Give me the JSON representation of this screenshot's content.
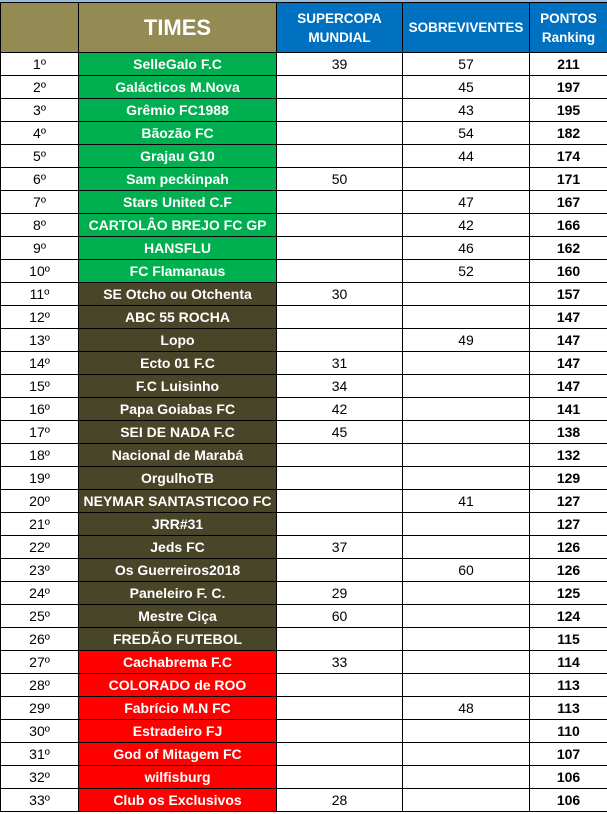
{
  "header": {
    "times": "TIMES",
    "supercopa": "SUPERCOPA MUNDIAL",
    "sobreviventes": "SOBREVIVENTES",
    "pontos": "PONTOS Ranking"
  },
  "colors": {
    "header_khaki": "#948a54",
    "header_blue": "#0070c0",
    "top_zone": "#00b050",
    "middle_zone": "#494529",
    "bottom_zone": "#ff0000"
  },
  "rows": [
    {
      "pos": "1º",
      "team": "SelleGalo F.C",
      "supercopa": "39",
      "sobreviventes": "57",
      "pontos": "211",
      "zone": "g"
    },
    {
      "pos": "2º",
      "team": "Galácticos M.Nova",
      "supercopa": "",
      "sobreviventes": "45",
      "pontos": "197",
      "zone": "g"
    },
    {
      "pos": "3º",
      "team": "Grêmio FC1988",
      "supercopa": "",
      "sobreviventes": "43",
      "pontos": "195",
      "zone": "g"
    },
    {
      "pos": "4º",
      "team": "Bãozão FC",
      "supercopa": "",
      "sobreviventes": "54",
      "pontos": "182",
      "zone": "g"
    },
    {
      "pos": "5º",
      "team": "Grajau G10",
      "supercopa": "",
      "sobreviventes": "44",
      "pontos": "174",
      "zone": "g"
    },
    {
      "pos": "6º",
      "team": "Sam peckinpah",
      "supercopa": "50",
      "sobreviventes": "",
      "pontos": "171",
      "zone": "g"
    },
    {
      "pos": "7º",
      "team": "Stars United C.F",
      "supercopa": "",
      "sobreviventes": "47",
      "pontos": "167",
      "zone": "g"
    },
    {
      "pos": "8º",
      "team": "CARTOLÂO BREJO FC GP",
      "supercopa": "",
      "sobreviventes": "42",
      "pontos": "166",
      "zone": "g"
    },
    {
      "pos": "9º",
      "team": "HANSFLU",
      "supercopa": "",
      "sobreviventes": "46",
      "pontos": "162",
      "zone": "g"
    },
    {
      "pos": "10º",
      "team": "FC Flamanaus",
      "supercopa": "",
      "sobreviventes": "52",
      "pontos": "160",
      "zone": "g"
    },
    {
      "pos": "11º",
      "team": "SE Otcho ou Otchenta",
      "supercopa": "30",
      "sobreviventes": "",
      "pontos": "157",
      "zone": "d"
    },
    {
      "pos": "12º",
      "team": "ABC 55 ROCHA",
      "supercopa": "",
      "sobreviventes": "",
      "pontos": "147",
      "zone": "d"
    },
    {
      "pos": "13º",
      "team": "Lopo",
      "supercopa": "",
      "sobreviventes": "49",
      "pontos": "147",
      "zone": "d"
    },
    {
      "pos": "14º",
      "team": "Ecto 01 F.C",
      "supercopa": "31",
      "sobreviventes": "",
      "pontos": "147",
      "zone": "d"
    },
    {
      "pos": "15º",
      "team": "F.C Luisinho",
      "supercopa": "34",
      "sobreviventes": "",
      "pontos": "147",
      "zone": "d"
    },
    {
      "pos": "16º",
      "team": "Papa Goiabas FC",
      "supercopa": "42",
      "sobreviventes": "",
      "pontos": "141",
      "zone": "d"
    },
    {
      "pos": "17º",
      "team": "SEI DE NADA F.C",
      "supercopa": "45",
      "sobreviventes": "",
      "pontos": "138",
      "zone": "d"
    },
    {
      "pos": "18º",
      "team": "Nacional de Marabá",
      "supercopa": "",
      "sobreviventes": "",
      "pontos": "132",
      "zone": "d"
    },
    {
      "pos": "19º",
      "team": "OrgulhoTB",
      "supercopa": "",
      "sobreviventes": "",
      "pontos": "129",
      "zone": "d"
    },
    {
      "pos": "20º",
      "team": "NEYMAR SANTASTICOO FC",
      "supercopa": "",
      "sobreviventes": "41",
      "pontos": "127",
      "zone": "d"
    },
    {
      "pos": "21º",
      "team": "JRR#31",
      "supercopa": "",
      "sobreviventes": "",
      "pontos": "127",
      "zone": "d"
    },
    {
      "pos": "22º",
      "team": "Jeds FC",
      "supercopa": "37",
      "sobreviventes": "",
      "pontos": "126",
      "zone": "d"
    },
    {
      "pos": "23º",
      "team": "Os Guerreiros2018",
      "supercopa": "",
      "sobreviventes": "60",
      "pontos": "126",
      "zone": "d"
    },
    {
      "pos": "24º",
      "team": "Paneleiro F. C.",
      "supercopa": "29",
      "sobreviventes": "",
      "pontos": "125",
      "zone": "d"
    },
    {
      "pos": "25º",
      "team": "Mestre Ciça",
      "supercopa": "60",
      "sobreviventes": "",
      "pontos": "124",
      "zone": "d"
    },
    {
      "pos": "26º",
      "team": "FREDÃO FUTEBOL",
      "supercopa": "",
      "sobreviventes": "",
      "pontos": "115",
      "zone": "d"
    },
    {
      "pos": "27º",
      "team": "Cachabrema F.C",
      "supercopa": "33",
      "sobreviventes": "",
      "pontos": "114",
      "zone": "r"
    },
    {
      "pos": "28º",
      "team": "COLORADO de ROO",
      "supercopa": "",
      "sobreviventes": "",
      "pontos": "113",
      "zone": "r"
    },
    {
      "pos": "29º",
      "team": "Fabrício M.N FC",
      "supercopa": "",
      "sobreviventes": "48",
      "pontos": "113",
      "zone": "r"
    },
    {
      "pos": "30º",
      "team": "Estradeiro FJ",
      "supercopa": "",
      "sobreviventes": "",
      "pontos": "110",
      "zone": "r"
    },
    {
      "pos": "31º",
      "team": "God of Mitagem FC",
      "supercopa": "",
      "sobreviventes": "",
      "pontos": "107",
      "zone": "r"
    },
    {
      "pos": "32º",
      "team": "wilfisburg",
      "supercopa": "",
      "sobreviventes": "",
      "pontos": "106",
      "zone": "r"
    },
    {
      "pos": "33º",
      "team": "Club os Exclusivos",
      "supercopa": "28",
      "sobreviventes": "",
      "pontos": "106",
      "zone": "r"
    }
  ]
}
